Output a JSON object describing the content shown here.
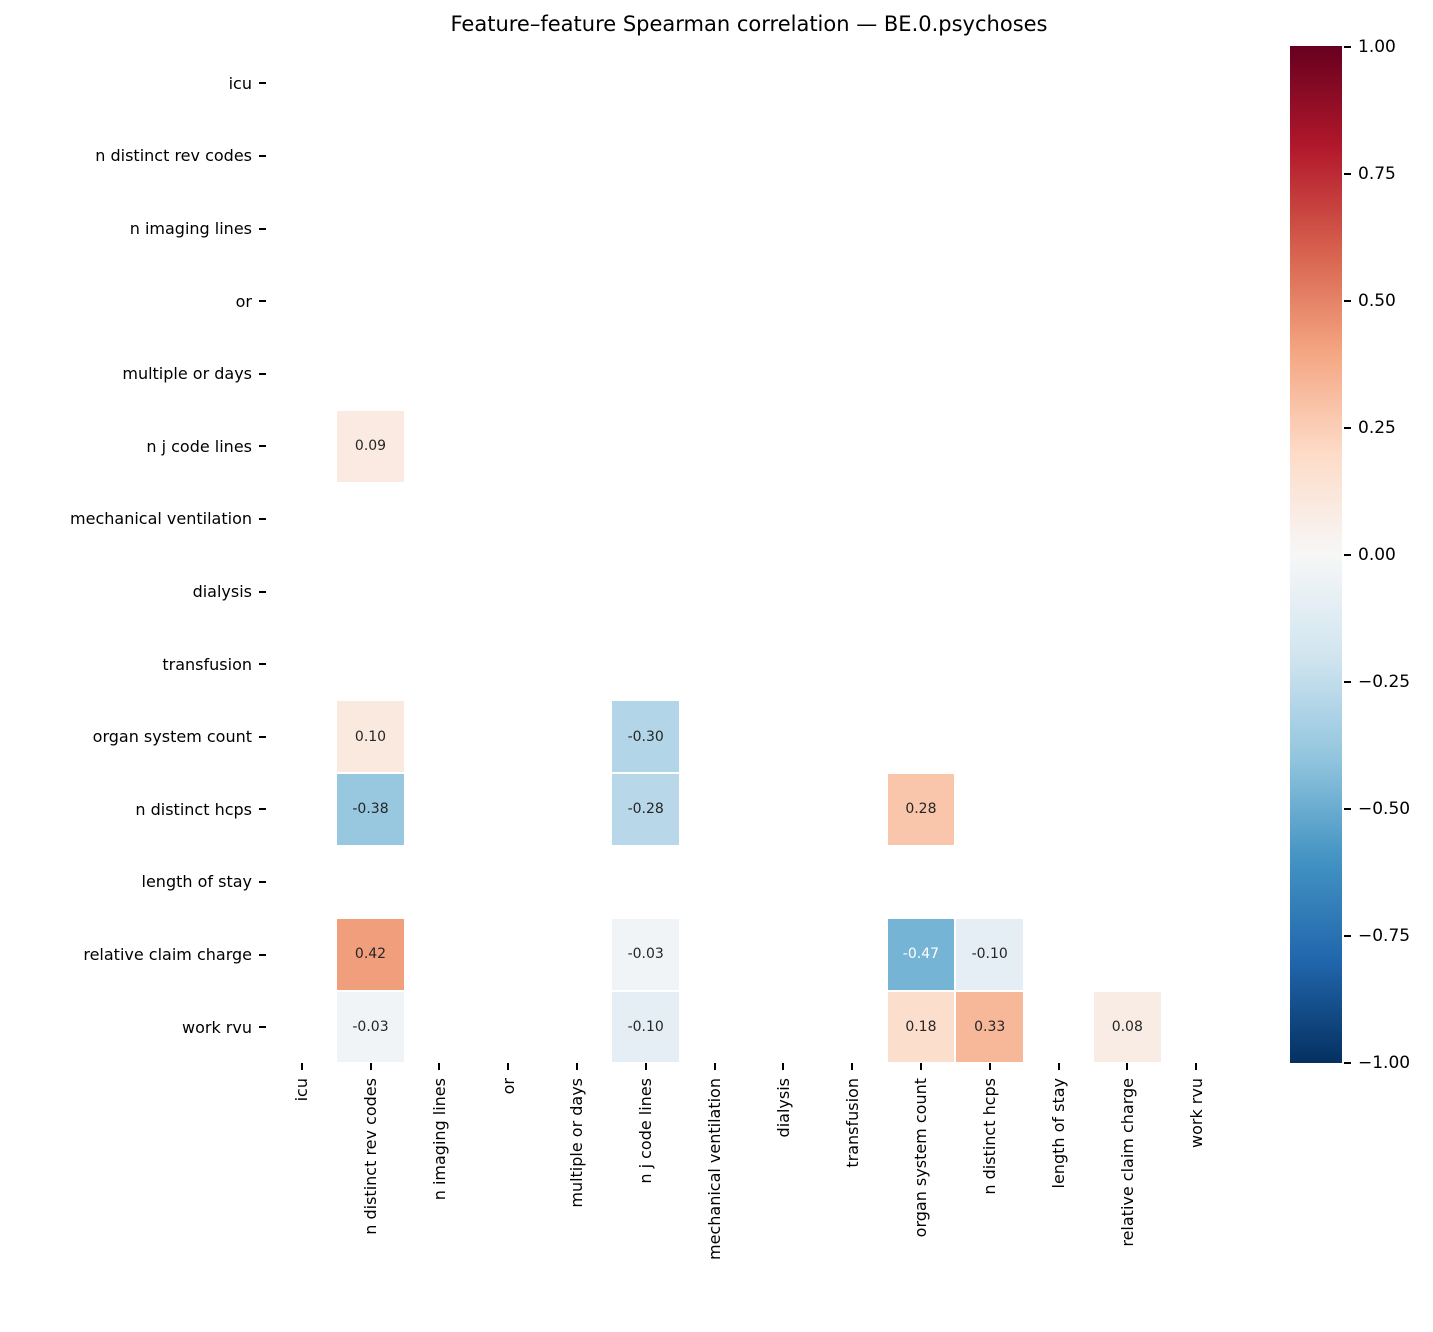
{
  "colors": {
    "background": "#ffffff",
    "annotation_dark": "#262626",
    "annotation_light": "#ffffff",
    "axis_text": "#000000"
  },
  "chart_data": {
    "type": "heatmap",
    "title": "Feature–feature Spearman correlation — BE.0.psychoses",
    "labels": [
      "icu",
      "n distinct rev codes",
      "n imaging lines",
      "or",
      "multiple or days",
      "n j code lines",
      "mechanical ventilation",
      "dialysis",
      "transfusion",
      "organ system count",
      "n distinct hcps",
      "length of stay",
      "relative claim charge",
      "work rvu"
    ],
    "x_axis_labels_same_as_y": true,
    "vmin": -1,
    "vmax": 1,
    "colormap": "RdBu_r",
    "colormap_anchors": [
      "#053061",
      "#2166ac",
      "#4393c3",
      "#92c5de",
      "#d1e5f0",
      "#f7f7f7",
      "#fddbc7",
      "#f4a582",
      "#d6604d",
      "#b2182b",
      "#67001f"
    ],
    "colorbar_ticks": [
      "1.00",
      "0.75",
      "0.50",
      "0.25",
      "0.00",
      "−0.25",
      "−0.50",
      "−0.75",
      "−1.00"
    ],
    "legend_position": "right",
    "cells": [
      {
        "row_label": "n j code lines",
        "col_label": "n distinct rev codes",
        "value": 0.09
      },
      {
        "row_label": "organ system count",
        "col_label": "n distinct rev codes",
        "value": 0.1
      },
      {
        "row_label": "organ system count",
        "col_label": "n j code lines",
        "value": -0.3
      },
      {
        "row_label": "n distinct hcps",
        "col_label": "n distinct rev codes",
        "value": -0.38
      },
      {
        "row_label": "n distinct hcps",
        "col_label": "n j code lines",
        "value": -0.28
      },
      {
        "row_label": "n distinct hcps",
        "col_label": "organ system count",
        "value": 0.28
      },
      {
        "row_label": "relative claim charge",
        "col_label": "n distinct rev codes",
        "value": 0.42
      },
      {
        "row_label": "relative claim charge",
        "col_label": "n j code lines",
        "value": -0.03
      },
      {
        "row_label": "relative claim charge",
        "col_label": "organ system count",
        "value": -0.47
      },
      {
        "row_label": "relative claim charge",
        "col_label": "n distinct hcps",
        "value": -0.1
      },
      {
        "row_label": "work rvu",
        "col_label": "n distinct rev codes",
        "value": -0.03
      },
      {
        "row_label": "work rvu",
        "col_label": "n j code lines",
        "value": -0.1
      },
      {
        "row_label": "work rvu",
        "col_label": "organ system count",
        "value": 0.18
      },
      {
        "row_label": "work rvu",
        "col_label": "n distinct hcps",
        "value": 0.33
      },
      {
        "row_label": "work rvu",
        "col_label": "relative claim charge",
        "value": 0.08
      }
    ]
  }
}
